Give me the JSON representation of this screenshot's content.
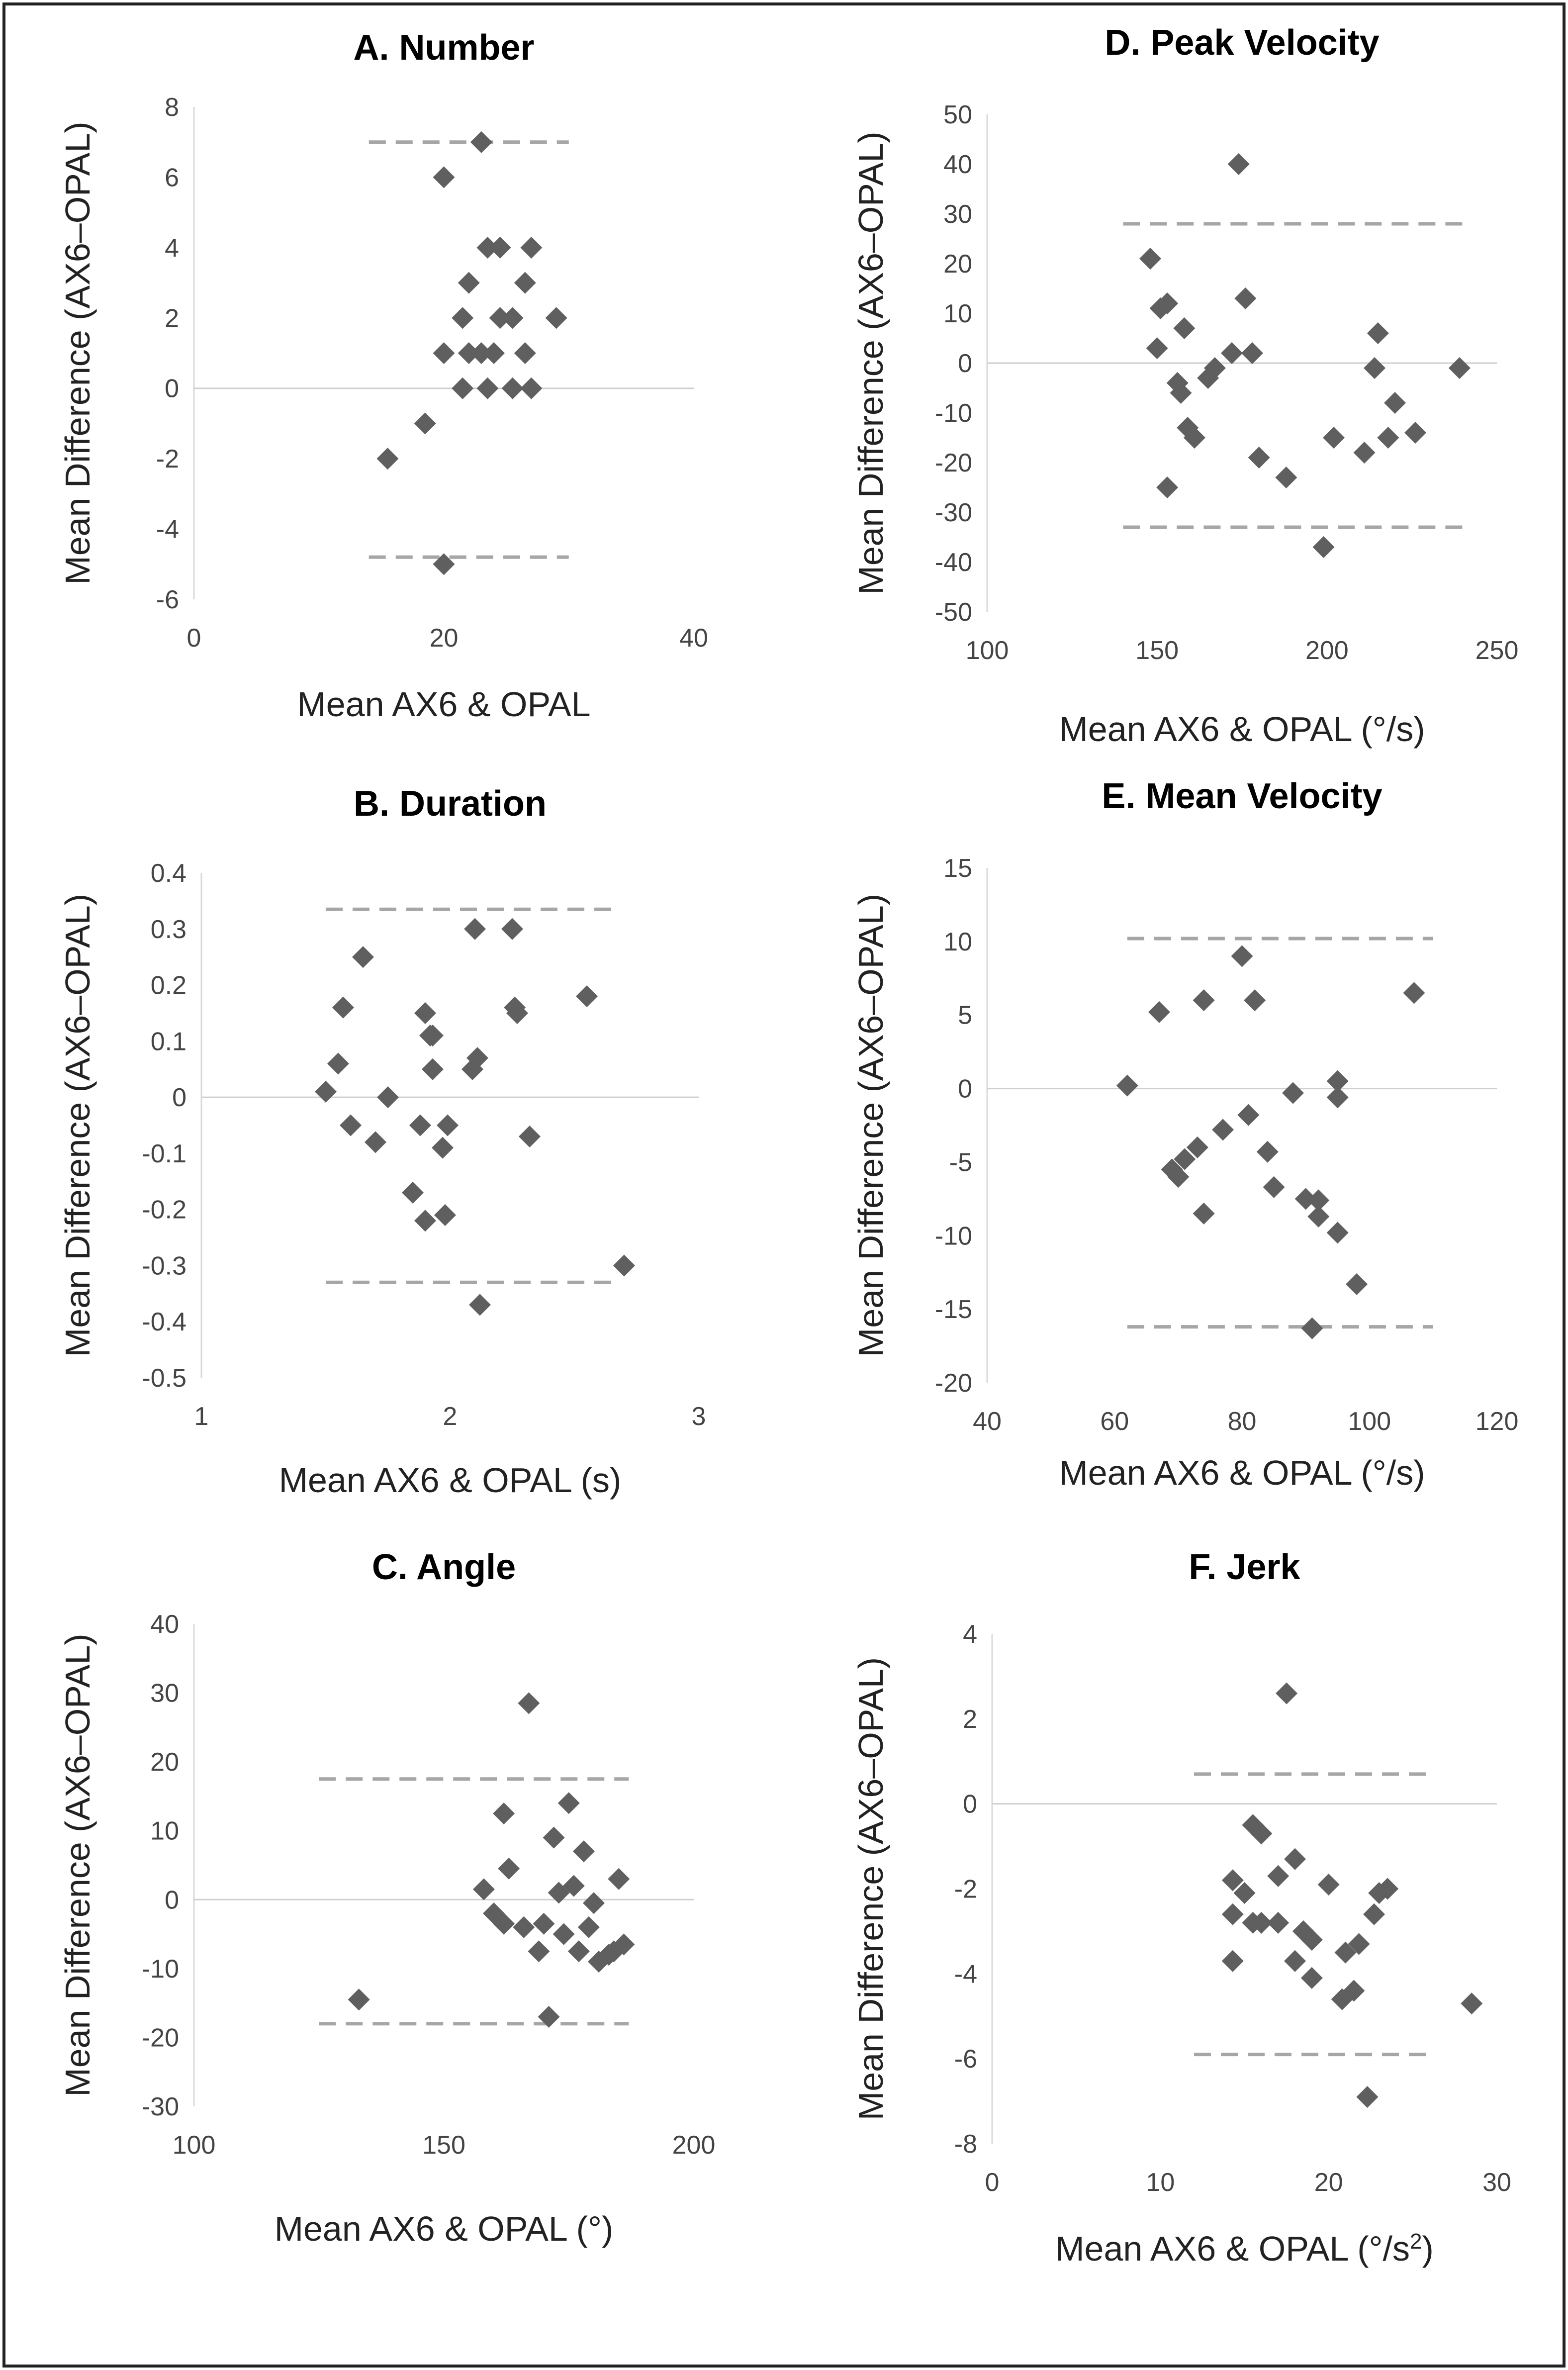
{
  "figure": {
    "ylabel_common": "Mean Difference (AX6–OPAL)"
  },
  "chart_data": [
    {
      "id": "A",
      "type": "scatter",
      "title": "A.  Number",
      "xlabel": "Mean AX6 & OPAL",
      "xlabel_sup": "",
      "xlabel_tail": "",
      "ylabel": "Mean Difference (AX6–OPAL)",
      "xlim": [
        0,
        40
      ],
      "xticks": [
        0,
        20,
        40
      ],
      "ylim": [
        -6,
        8
      ],
      "yticks": [
        -6,
        -4,
        -2,
        0,
        2,
        4,
        6,
        8
      ],
      "zero_line": 0,
      "limits_of_agreement": [
        7.0,
        -4.8
      ],
      "loa_x_range": [
        14,
        30
      ],
      "points": [
        [
          23,
          7
        ],
        [
          20,
          6
        ],
        [
          23.5,
          4
        ],
        [
          24.5,
          4
        ],
        [
          27,
          4
        ],
        [
          22,
          3
        ],
        [
          26.5,
          3
        ],
        [
          21.5,
          2
        ],
        [
          24.5,
          2
        ],
        [
          25.5,
          2
        ],
        [
          29,
          2
        ],
        [
          20,
          1
        ],
        [
          22,
          1
        ],
        [
          23,
          1
        ],
        [
          24,
          1
        ],
        [
          26.5,
          1
        ],
        [
          21.5,
          0
        ],
        [
          23.5,
          0
        ],
        [
          25.5,
          0
        ],
        [
          27,
          0
        ],
        [
          18.5,
          -1
        ],
        [
          15.5,
          -2
        ],
        [
          20,
          -5
        ]
      ]
    },
    {
      "id": "D",
      "type": "scatter",
      "title": "D.  Peak Velocity",
      "xlabel": "Mean AX6 & OPAL (°/s)",
      "xlabel_sup": "",
      "xlabel_tail": "",
      "ylabel": "Mean Difference (AX6–OPAL)",
      "xlim": [
        100,
        250
      ],
      "xticks": [
        100,
        150,
        200,
        250
      ],
      "ylim": [
        -50,
        50
      ],
      "yticks": [
        -50,
        -40,
        -30,
        -20,
        -10,
        0,
        10,
        20,
        30,
        40,
        50
      ],
      "zero_line": 0,
      "limits_of_agreement": [
        28,
        -33
      ],
      "loa_x_range": [
        140,
        240
      ],
      "points": [
        [
          174,
          40
        ],
        [
          148,
          21
        ],
        [
          151,
          11
        ],
        [
          153,
          12
        ],
        [
          176,
          13
        ],
        [
          150,
          3
        ],
        [
          158,
          7
        ],
        [
          172,
          2
        ],
        [
          178,
          2
        ],
        [
          215,
          6
        ],
        [
          165,
          -3
        ],
        [
          167,
          -1
        ],
        [
          156,
          -4
        ],
        [
          157,
          -6
        ],
        [
          214,
          -1
        ],
        [
          239,
          -1
        ],
        [
          159,
          -13
        ],
        [
          161,
          -15
        ],
        [
          220,
          -8
        ],
        [
          218,
          -15
        ],
        [
          202,
          -15
        ],
        [
          211,
          -18
        ],
        [
          226,
          -14
        ],
        [
          180,
          -19
        ],
        [
          188,
          -23
        ],
        [
          153,
          -25
        ],
        [
          199,
          -37
        ]
      ]
    },
    {
      "id": "B",
      "type": "scatter",
      "title": "B.  Duration",
      "xlabel": "Mean AX6 & OPAL (s)",
      "xlabel_sup": "",
      "xlabel_tail": "",
      "ylabel": "Mean Difference (AX6–OPAL)",
      "xlim": [
        1,
        3
      ],
      "xticks": [
        1,
        2,
        3
      ],
      "ylim": [
        -0.5,
        0.4
      ],
      "yticks": [
        -0.5,
        -0.4,
        -0.3,
        -0.2,
        -0.1,
        0,
        0.1,
        0.2,
        0.3,
        0.4
      ],
      "zero_line": 0,
      "limits_of_agreement": [
        0.335,
        -0.33
      ],
      "loa_x_range": [
        1.5,
        2.66
      ],
      "points": [
        [
          2.1,
          0.3
        ],
        [
          2.25,
          0.3
        ],
        [
          1.65,
          0.25
        ],
        [
          2.55,
          0.18
        ],
        [
          1.57,
          0.16
        ],
        [
          2.26,
          0.16
        ],
        [
          2.27,
          0.15
        ],
        [
          1.9,
          0.15
        ],
        [
          1.92,
          0.11
        ],
        [
          1.93,
          0.11
        ],
        [
          2.11,
          0.07
        ],
        [
          2.09,
          0.05
        ],
        [
          1.93,
          0.05
        ],
        [
          1.55,
          0.06
        ],
        [
          1.5,
          0.01
        ],
        [
          1.75,
          0
        ],
        [
          1.6,
          -0.05
        ],
        [
          1.88,
          -0.05
        ],
        [
          1.99,
          -0.05
        ],
        [
          1.7,
          -0.08
        ],
        [
          1.97,
          -0.09
        ],
        [
          2.32,
          -0.07
        ],
        [
          1.85,
          -0.17
        ],
        [
          1.9,
          -0.22
        ],
        [
          1.98,
          -0.21
        ],
        [
          2.7,
          -0.3
        ],
        [
          2.12,
          -0.37
        ]
      ]
    },
    {
      "id": "E",
      "type": "scatter",
      "title": "E.  Mean Velocity",
      "xlabel": "Mean AX6 & OPAL (°/s)",
      "xlabel_sup": "",
      "xlabel_tail": "",
      "ylabel": "Mean Difference (AX6–OPAL)",
      "xlim": [
        40,
        120
      ],
      "xticks": [
        40,
        60,
        80,
        100,
        120
      ],
      "ylim": [
        -20,
        15
      ],
      "yticks": [
        -20,
        -15,
        -10,
        -5,
        0,
        5,
        10,
        15
      ],
      "zero_line": 0,
      "limits_of_agreement": [
        10.2,
        -16.2
      ],
      "loa_x_range": [
        62,
        110
      ],
      "points": [
        [
          80,
          9
        ],
        [
          107,
          6.5
        ],
        [
          74,
          6
        ],
        [
          82,
          6
        ],
        [
          67,
          5.2
        ],
        [
          62,
          0.2
        ],
        [
          95,
          0.5
        ],
        [
          95,
          -0.6
        ],
        [
          88,
          -0.3
        ],
        [
          81,
          -1.8
        ],
        [
          77,
          -2.8
        ],
        [
          73,
          -4
        ],
        [
          71,
          -4.8
        ],
        [
          69,
          -5.5
        ],
        [
          70,
          -6
        ],
        [
          84,
          -4.3
        ],
        [
          85,
          -6.7
        ],
        [
          90,
          -7.5
        ],
        [
          92,
          -7.6
        ],
        [
          92,
          -8.7
        ],
        [
          74,
          -8.5
        ],
        [
          95,
          -9.8
        ],
        [
          98,
          -13.3
        ],
        [
          91,
          -16.3
        ]
      ]
    },
    {
      "id": "C",
      "type": "scatter",
      "title": "C.  Angle",
      "xlabel": "Mean AX6 & OPAL (°)",
      "xlabel_sup": "",
      "xlabel_tail": "",
      "ylabel": "Mean Difference (AX6–OPAL)",
      "xlim": [
        100,
        200
      ],
      "xticks": [
        100,
        150,
        200
      ],
      "ylim": [
        -30,
        40
      ],
      "yticks": [
        -30,
        -20,
        -10,
        0,
        10,
        20,
        30,
        40
      ],
      "zero_line": 0,
      "limits_of_agreement": [
        17.5,
        -18
      ],
      "loa_x_range": [
        125,
        187
      ],
      "points": [
        [
          167,
          28.5
        ],
        [
          175,
          14
        ],
        [
          162,
          12.5
        ],
        [
          172,
          9
        ],
        [
          178,
          7
        ],
        [
          163,
          4.5
        ],
        [
          185,
          3
        ],
        [
          176,
          2
        ],
        [
          173,
          1
        ],
        [
          158,
          1.5
        ],
        [
          160,
          -2
        ],
        [
          162,
          -3.5
        ],
        [
          166,
          -4
        ],
        [
          170,
          -3.5
        ],
        [
          174,
          -5
        ],
        [
          179,
          -4
        ],
        [
          180,
          -0.5
        ],
        [
          183,
          -8
        ],
        [
          186,
          -6.5
        ],
        [
          184,
          -7.5
        ],
        [
          177,
          -7.5
        ],
        [
          169,
          -7.5
        ],
        [
          181,
          -9
        ],
        [
          171,
          -17
        ],
        [
          133,
          -14.5
        ]
      ]
    },
    {
      "id": "F",
      "type": "scatter",
      "title": "F.  Jerk",
      "xlabel": "Mean AX6 & OPAL (°/s",
      "xlabel_sup": "2",
      "xlabel_tail": ")",
      "ylabel": "Mean Difference (AX6–OPAL)",
      "xlim": [
        0,
        30
      ],
      "xticks": [
        0,
        10,
        20,
        30
      ],
      "ylim": [
        -8,
        4
      ],
      "yticks": [
        -8,
        -6,
        -4,
        -2,
        0,
        2,
        4
      ],
      "zero_line": 0,
      "limits_of_agreement": [
        0.7,
        -5.9
      ],
      "loa_x_range": [
        12,
        26
      ],
      "points": [
        [
          17.5,
          2.6
        ],
        [
          15.5,
          -0.5
        ],
        [
          16,
          -0.7
        ],
        [
          14.3,
          -1.8
        ],
        [
          15,
          -2.1
        ],
        [
          17,
          -1.7
        ],
        [
          18,
          -1.3
        ],
        [
          20,
          -1.9
        ],
        [
          23,
          -2.1
        ],
        [
          23.5,
          -2.0
        ],
        [
          14.3,
          -2.6
        ],
        [
          16,
          -2.8
        ],
        [
          17,
          -2.8
        ],
        [
          18.5,
          -3.0
        ],
        [
          19,
          -3.2
        ],
        [
          21,
          -3.5
        ],
        [
          21.8,
          -3.3
        ],
        [
          22.7,
          -2.6
        ],
        [
          14.3,
          -3.7
        ],
        [
          18,
          -3.7
        ],
        [
          19,
          -4.1
        ],
        [
          21.5,
          -4.4
        ],
        [
          20.8,
          -4.6
        ],
        [
          28.5,
          -4.7
        ],
        [
          15.5,
          -2.8
        ],
        [
          22.3,
          -6.9
        ]
      ]
    }
  ]
}
